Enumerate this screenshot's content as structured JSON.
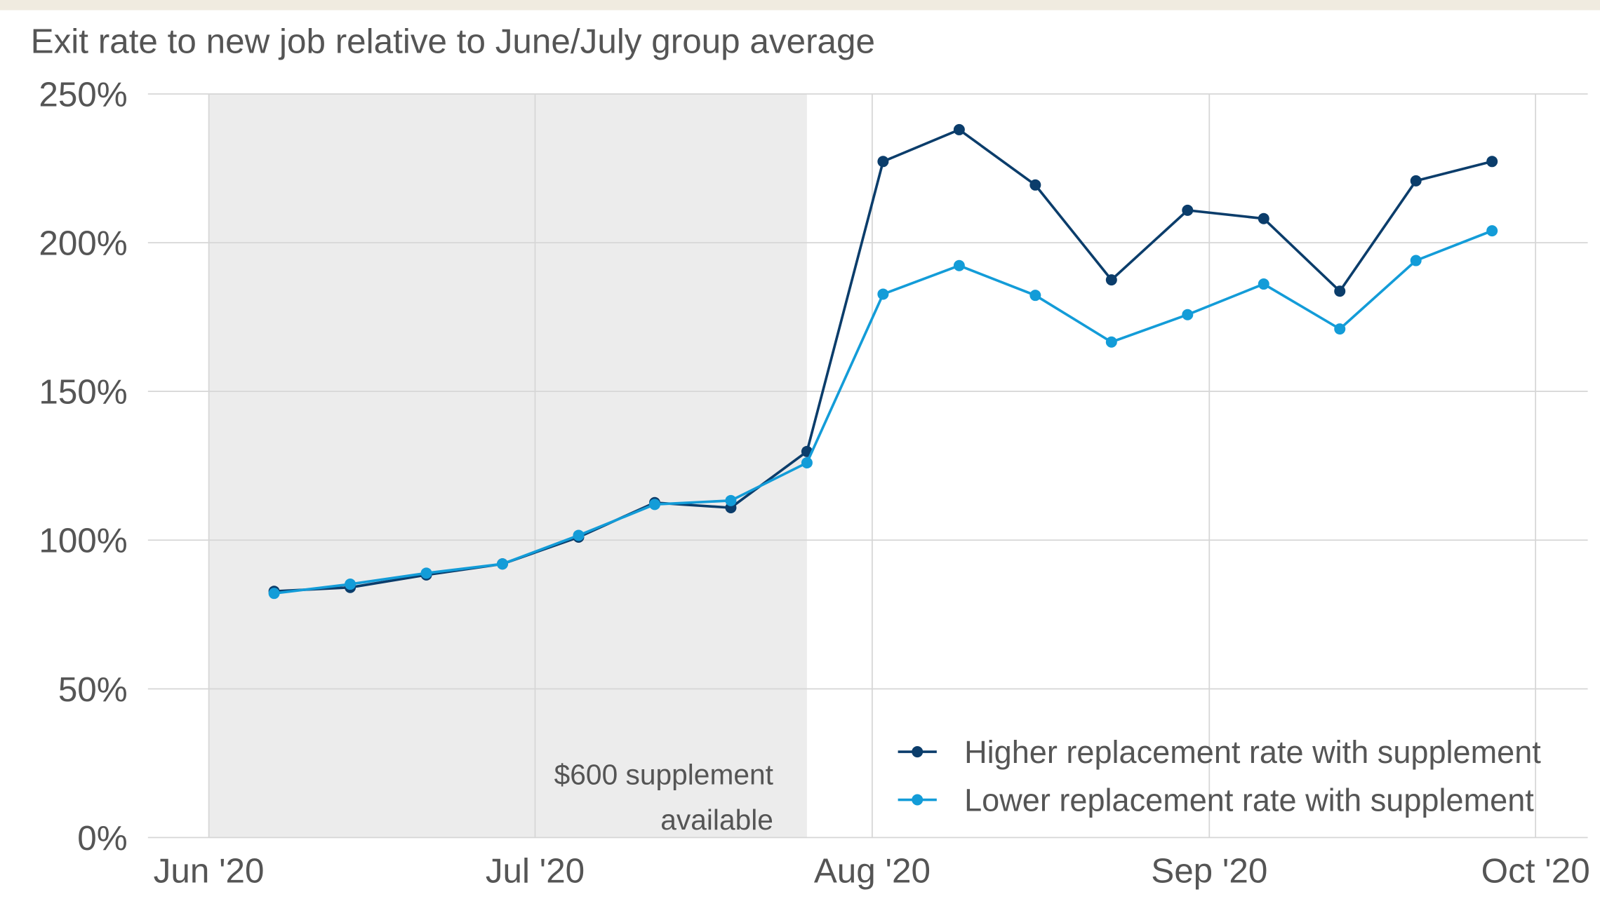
{
  "chart_data": {
    "type": "line",
    "title": "Exit rate to new job relative to June/July group average",
    "x": [
      6,
      13,
      20,
      27,
      34,
      41,
      48,
      55,
      62,
      69,
      76,
      83,
      90,
      97,
      104,
      111,
      118
    ],
    "series": [
      {
        "name": "Higher replacement rate with supplement",
        "color": "#0b3d6b",
        "values": [
          82.8,
          84.1,
          88.3,
          92.0,
          101.0,
          112.6,
          110.9,
          129.8,
          227.3,
          238.0,
          219.4,
          187.5,
          210.9,
          208.1,
          183.7,
          220.8,
          227.3
        ]
      },
      {
        "name": "Lower replacement rate with supplement",
        "color": "#139cd8",
        "values": [
          82.1,
          85.2,
          88.9,
          92.0,
          101.6,
          112.0,
          113.3,
          126.0,
          182.7,
          192.3,
          182.3,
          166.6,
          175.8,
          186.1,
          171.0,
          194.0,
          204.0
        ]
      }
    ],
    "xlim": [
      -5.6,
      126.8
    ],
    "xticks": [
      {
        "value": 0,
        "label": "Jun '20"
      },
      {
        "value": 30,
        "label": "Jul '20"
      },
      {
        "value": 61,
        "label": "Aug '20"
      },
      {
        "value": 92,
        "label": "Sep '20"
      },
      {
        "value": 122,
        "label": "Oct '20"
      }
    ],
    "ylim": [
      0,
      250
    ],
    "yticks": [
      {
        "value": 0,
        "label": "0%"
      },
      {
        "value": 50,
        "label": "50%"
      },
      {
        "value": 100,
        "label": "100%"
      },
      {
        "value": 150,
        "label": "150%"
      },
      {
        "value": 200,
        "label": "200%"
      },
      {
        "value": 250,
        "label": "250%"
      }
    ],
    "grid": true,
    "shaded_xlim": [
      0,
      55
    ],
    "annotation": [
      "$600 supplement",
      "available"
    ],
    "legend": "lower-right"
  }
}
